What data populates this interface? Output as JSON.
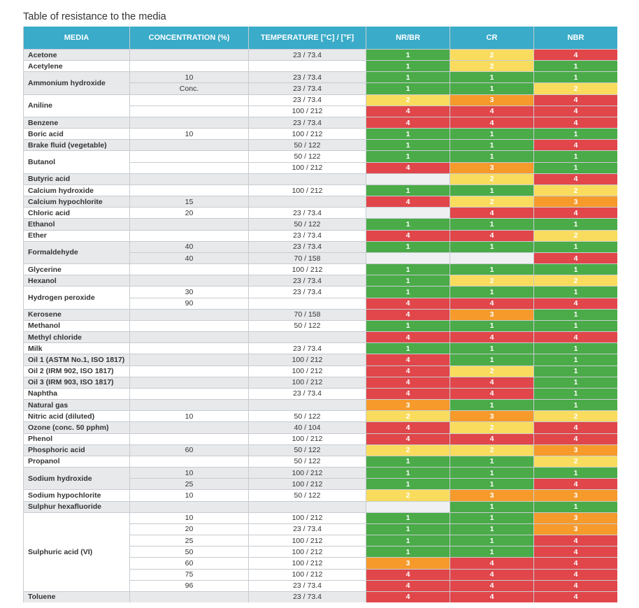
{
  "title": "Table of resistance to the media",
  "columns": [
    "MEDIA",
    "CONCENTRATION (%)",
    "TEMPERATURE [°C] / [°F]",
    "NR/BR",
    "CR",
    "NBR"
  ],
  "rating_colors": {
    "1": "#4aab48",
    "2": "#f9dc5e",
    "3": "#f59a2b",
    "4": "#e0464a"
  },
  "rows": [
    {
      "media": "Acetone",
      "entries": [
        {
          "concentration": "",
          "temperature": "23 / 73.4",
          "ratings": [
            1,
            2,
            4
          ]
        }
      ]
    },
    {
      "media": "Acetylene",
      "entries": [
        {
          "concentration": "",
          "temperature": "",
          "ratings": [
            1,
            2,
            1
          ]
        }
      ]
    },
    {
      "media": "Ammonium hydroxide",
      "entries": [
        {
          "concentration": "10",
          "temperature": "23 / 73.4",
          "ratings": [
            1,
            1,
            1
          ]
        },
        {
          "concentration": "Conc.",
          "temperature": "23 / 73.4",
          "ratings": [
            1,
            1,
            2
          ]
        }
      ]
    },
    {
      "media": "Aniline",
      "entries": [
        {
          "concentration": "",
          "temperature": "23 / 73.4",
          "ratings": [
            2,
            3,
            4
          ]
        },
        {
          "concentration": "",
          "temperature": "100 / 212",
          "ratings": [
            4,
            4,
            4
          ]
        }
      ]
    },
    {
      "media": "Benzene",
      "entries": [
        {
          "concentration": "",
          "temperature": "23 / 73.4",
          "ratings": [
            4,
            4,
            4
          ]
        }
      ]
    },
    {
      "media": "Boric acid",
      "entries": [
        {
          "concentration": "10",
          "temperature": "100 / 212",
          "ratings": [
            1,
            1,
            1
          ]
        }
      ]
    },
    {
      "media": "Brake fluid (vegetable)",
      "entries": [
        {
          "concentration": "",
          "temperature": "50 / 122",
          "ratings": [
            1,
            1,
            4
          ]
        }
      ]
    },
    {
      "media": "Butanol",
      "entries": [
        {
          "concentration": "",
          "temperature": "50 / 122",
          "ratings": [
            1,
            1,
            1
          ]
        },
        {
          "concentration": "",
          "temperature": "100 / 212",
          "ratings": [
            4,
            3,
            1
          ]
        }
      ]
    },
    {
      "media": "Butyric acid",
      "entries": [
        {
          "concentration": "",
          "temperature": "",
          "ratings": [
            null,
            2,
            4
          ]
        }
      ]
    },
    {
      "media": "Calcium hydroxide",
      "entries": [
        {
          "concentration": "",
          "temperature": "100 / 212",
          "ratings": [
            1,
            1,
            2
          ]
        }
      ]
    },
    {
      "media": "Calcium hypochlorite",
      "entries": [
        {
          "concentration": "15",
          "temperature": "",
          "ratings": [
            4,
            2,
            3
          ]
        }
      ]
    },
    {
      "media": "Chloric acid",
      "entries": [
        {
          "concentration": "20",
          "temperature": "23 / 73.4",
          "ratings": [
            null,
            4,
            4
          ]
        }
      ]
    },
    {
      "media": "Ethanol",
      "entries": [
        {
          "concentration": "",
          "temperature": "50 / 122",
          "ratings": [
            1,
            1,
            1
          ]
        }
      ]
    },
    {
      "media": "Ether",
      "entries": [
        {
          "concentration": "",
          "temperature": "23 / 73.4",
          "ratings": [
            4,
            4,
            2
          ]
        }
      ]
    },
    {
      "media": "Formaldehyde",
      "entries": [
        {
          "concentration": "40",
          "temperature": "23 / 73.4",
          "ratings": [
            1,
            1,
            1
          ]
        },
        {
          "concentration": "40",
          "temperature": "70 / 158",
          "ratings": [
            null,
            null,
            4
          ]
        }
      ]
    },
    {
      "media": "Glycerine",
      "entries": [
        {
          "concentration": "",
          "temperature": "100 / 212",
          "ratings": [
            1,
            1,
            1
          ]
        }
      ]
    },
    {
      "media": "Hexanol",
      "entries": [
        {
          "concentration": "",
          "temperature": "23 / 73.4",
          "ratings": [
            1,
            2,
            2
          ]
        }
      ]
    },
    {
      "media": "Hydrogen peroxide",
      "entries": [
        {
          "concentration": "30",
          "temperature": "23 / 73.4",
          "ratings": [
            1,
            1,
            1
          ]
        },
        {
          "concentration": "90",
          "temperature": "",
          "ratings": [
            4,
            4,
            4
          ]
        }
      ]
    },
    {
      "media": "Kerosene",
      "entries": [
        {
          "concentration": "",
          "temperature": "70 / 158",
          "ratings": [
            4,
            3,
            1
          ]
        }
      ]
    },
    {
      "media": "Methanol",
      "entries": [
        {
          "concentration": "",
          "temperature": "50 / 122",
          "ratings": [
            1,
            1,
            1
          ]
        }
      ]
    },
    {
      "media": "Methyl chloride",
      "entries": [
        {
          "concentration": "",
          "temperature": "",
          "ratings": [
            4,
            4,
            4
          ]
        }
      ]
    },
    {
      "media": "Milk",
      "entries": [
        {
          "concentration": "",
          "temperature": "23 / 73.4",
          "ratings": [
            1,
            1,
            1
          ]
        }
      ]
    },
    {
      "media": "Oil 1 (ASTM No.1, ISO 1817)",
      "entries": [
        {
          "concentration": "",
          "temperature": "100 / 212",
          "ratings": [
            4,
            1,
            1
          ]
        }
      ]
    },
    {
      "media": "Oil 2 (IRM 902, ISO 1817)",
      "entries": [
        {
          "concentration": "",
          "temperature": "100 / 212",
          "ratings": [
            4,
            2,
            1
          ]
        }
      ]
    },
    {
      "media": "Oil 3 (IRM 903, ISO 1817)",
      "entries": [
        {
          "concentration": "",
          "temperature": "100 / 212",
          "ratings": [
            4,
            4,
            1
          ]
        }
      ]
    },
    {
      "media": "Naphtha",
      "entries": [
        {
          "concentration": "",
          "temperature": "23 / 73.4",
          "ratings": [
            4,
            4,
            1
          ]
        }
      ]
    },
    {
      "media": "Natural gas",
      "entries": [
        {
          "concentration": "",
          "temperature": "",
          "ratings": [
            3,
            1,
            1
          ]
        }
      ]
    },
    {
      "media": "Nitric acid (diluted)",
      "entries": [
        {
          "concentration": "10",
          "temperature": "50 / 122",
          "ratings": [
            2,
            3,
            2
          ]
        }
      ]
    },
    {
      "media": "Ozone (conc. 50 pphm)",
      "entries": [
        {
          "concentration": "",
          "temperature": "40 / 104",
          "ratings": [
            4,
            2,
            4
          ]
        }
      ]
    },
    {
      "media": "Phenol",
      "entries": [
        {
          "concentration": "",
          "temperature": "100 / 212",
          "ratings": [
            4,
            4,
            4
          ]
        }
      ]
    },
    {
      "media": "Phosphoric acid",
      "entries": [
        {
          "concentration": "60",
          "temperature": "50 / 122",
          "ratings": [
            2,
            2,
            3
          ]
        }
      ]
    },
    {
      "media": "Propanol",
      "entries": [
        {
          "concentration": "",
          "temperature": "50 / 122",
          "ratings": [
            1,
            1,
            2
          ]
        }
      ]
    },
    {
      "media": "Sodium hydroxide",
      "entries": [
        {
          "concentration": "10",
          "temperature": "100 / 212",
          "ratings": [
            1,
            1,
            1
          ]
        },
        {
          "concentration": "25",
          "temperature": "100 / 212",
          "ratings": [
            1,
            1,
            4
          ]
        }
      ]
    },
    {
      "media": "Sodium hypochlorite",
      "entries": [
        {
          "concentration": "10",
          "temperature": "50 / 122",
          "ratings": [
            2,
            3,
            3
          ]
        }
      ]
    },
    {
      "media": "Sulphur hexafluoride",
      "entries": [
        {
          "concentration": "",
          "temperature": "",
          "ratings": [
            null,
            1,
            1
          ]
        }
      ]
    },
    {
      "media": "Sulphuric acid (VI)",
      "entries": [
        {
          "concentration": "10",
          "temperature": "100 / 212",
          "ratings": [
            1,
            1,
            3
          ]
        },
        {
          "concentration": "20",
          "temperature": "23 / 73.4",
          "ratings": [
            1,
            1,
            3
          ]
        },
        {
          "concentration": "25",
          "temperature": "100 / 212",
          "ratings": [
            1,
            1,
            4
          ]
        },
        {
          "concentration": "50",
          "temperature": "100 / 212",
          "ratings": [
            1,
            1,
            4
          ]
        },
        {
          "concentration": "60",
          "temperature": "100 / 212",
          "ratings": [
            3,
            4,
            4
          ]
        },
        {
          "concentration": "75",
          "temperature": "100 / 212",
          "ratings": [
            4,
            4,
            4
          ]
        },
        {
          "concentration": "96",
          "temperature": "23 / 73.4",
          "ratings": [
            4,
            4,
            4
          ]
        }
      ]
    },
    {
      "media": "Toluene",
      "entries": [
        {
          "concentration": "",
          "temperature": "23 / 73.4",
          "ratings": [
            4,
            4,
            4
          ]
        }
      ]
    }
  ]
}
